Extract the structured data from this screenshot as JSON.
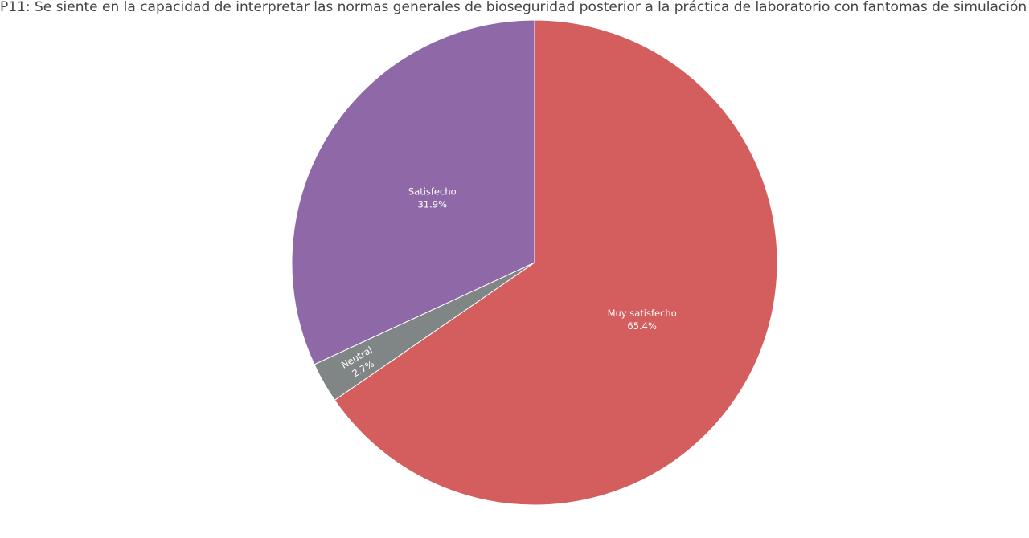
{
  "chart_data": {
    "type": "pie",
    "title": "P11: Se siente en la capacidad de interpretar las normas generales de bioseguridad posterior a la práctica de laboratorio con fantomas de simulación",
    "direction": "clockwise",
    "start_angle_deg": 0,
    "slices": [
      {
        "label": "Muy satisfecho",
        "value": 65.4,
        "percent_text": "65.4%",
        "color": "#d45d5d"
      },
      {
        "label": "Neutral",
        "value": 2.7,
        "percent_text": "2.7%",
        "color": "#808585"
      },
      {
        "label": "Satisfecho",
        "value": 31.9,
        "percent_text": "31.9%",
        "color": "#8f68a8"
      }
    ]
  }
}
